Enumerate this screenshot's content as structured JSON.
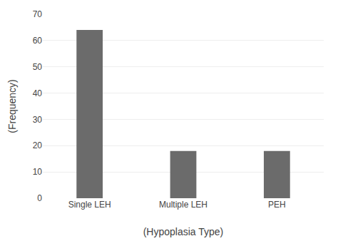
{
  "chart_data": {
    "type": "bar",
    "categories": [
      "Single LEH",
      "Multiple LEH",
      "PEH"
    ],
    "values": [
      64,
      18,
      18
    ],
    "color": "#6b6b6b",
    "xlabel": "(Hypoplasia Type)",
    "ylabel": "(Frequency)",
    "ylim": [
      0,
      70
    ],
    "yticks": [
      0,
      10,
      20,
      30,
      40,
      50,
      60,
      70
    ],
    "grid": true
  }
}
